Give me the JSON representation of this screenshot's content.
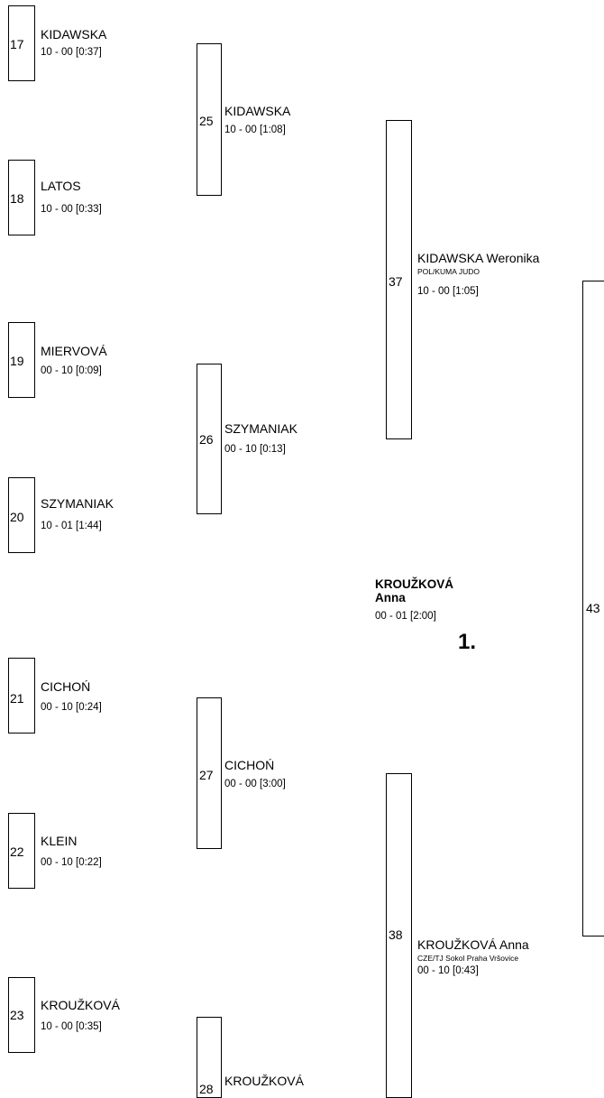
{
  "round1": [
    {
      "num": "17",
      "name": "KIDAWSKA",
      "score": "10 - 00 [0:37]"
    },
    {
      "num": "18",
      "name": "LATOS",
      "score": "10 - 00 [0:33]"
    },
    {
      "num": "19",
      "name": "MIERVOVÁ",
      "score": "00 - 10 [0:09]"
    },
    {
      "num": "20",
      "name": "SZYMANIAK",
      "score": "10 - 01 [1:44]"
    },
    {
      "num": "21",
      "name": "CICHOŃ",
      "score": "00 - 10 [0:24]"
    },
    {
      "num": "22",
      "name": "KLEIN",
      "score": "00 - 10 [0:22]"
    },
    {
      "num": "23",
      "name": "KROUŽKOVÁ",
      "score": "10 - 00 [0:35]"
    }
  ],
  "round2": [
    {
      "num": "25",
      "name": "KIDAWSKA",
      "score": "10 - 00 [1:08]"
    },
    {
      "num": "26",
      "name": "SZYMANIAK",
      "score": "00 - 10 [0:13]"
    },
    {
      "num": "27",
      "name": "CICHOŃ",
      "score": "00 - 00 [3:00]"
    },
    {
      "num": "28",
      "name": "KROUŽKOVÁ"
    }
  ],
  "round3": [
    {
      "num": "37",
      "name": "KIDAWSKA Weronika",
      "club": "POL/KUMA JUDO",
      "score": "10 - 00 [1:05]"
    },
    {
      "num": "38",
      "name": "KROUŽKOVÁ Anna",
      "club": "CZE/TJ Sokol Praha Vršovice",
      "score": "00 - 10 [0:43]"
    }
  ],
  "round4": [
    {
      "num": "43"
    }
  ],
  "winner": {
    "first": "KROUŽKOVÁ",
    "last": "Anna",
    "score": "00 - 01 [2:00]",
    "place": "1."
  }
}
